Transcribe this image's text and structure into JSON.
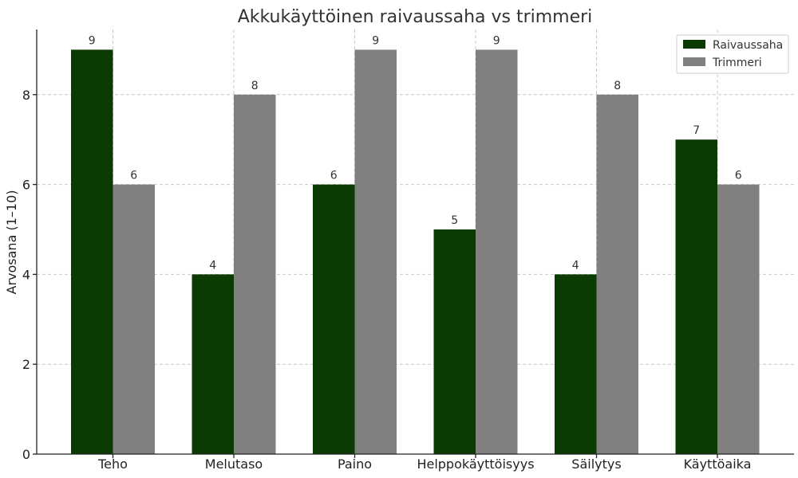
{
  "chart_data": {
    "type": "bar",
    "title": "Akkukäyttöinen raivaussaha vs trimmeri",
    "xlabel": "",
    "ylabel": "Arvosana (1–10)",
    "categories": [
      "Teho",
      "Melutaso",
      "Paino",
      "Helppokäyttöisyys",
      "Säilytys",
      "Käyttöaika"
    ],
    "series": [
      {
        "name": "Raivaussaha",
        "values": [
          9,
          4,
          6,
          5,
          4,
          7
        ],
        "color": "#0b3a02"
      },
      {
        "name": "Trimmeri",
        "values": [
          6,
          8,
          9,
          9,
          8,
          6
        ],
        "color": "#808080"
      }
    ],
    "ylim": [
      0,
      9.45
    ],
    "yticks": [
      0,
      2,
      4,
      6,
      8
    ],
    "grid": true,
    "legend": "top-right"
  }
}
